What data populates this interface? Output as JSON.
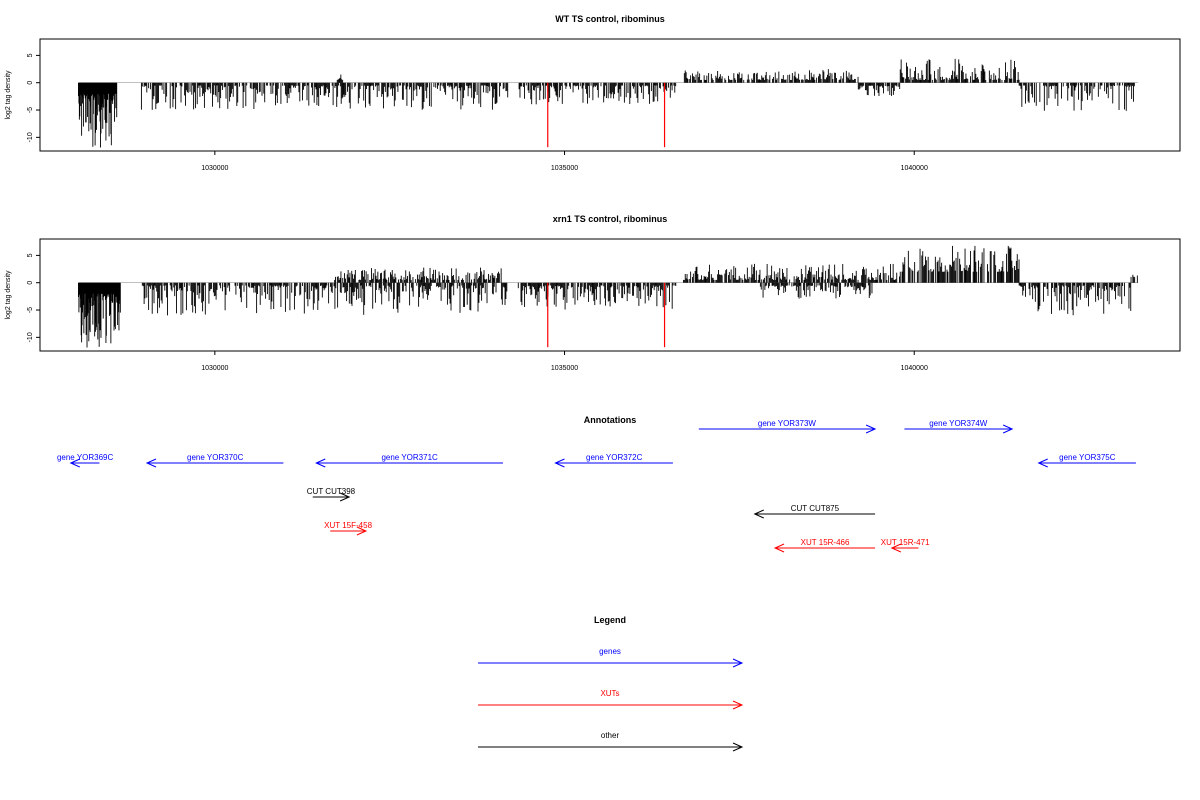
{
  "chart_data": [
    {
      "type": "bar",
      "title": "WT TS control, ribominus",
      "ylabel": "log2 tag density",
      "ylim": [
        -12.5,
        8
      ],
      "xlim": [
        1027500,
        1043800
      ],
      "yticks": [
        "5",
        "0",
        "-5",
        "-10"
      ],
      "xticks": [
        "1030000",
        "1035000",
        "1040000"
      ],
      "grid": false,
      "highlight_color": "#ff0000",
      "bar_color": "#000000",
      "segments": [
        {
          "from": 1028050,
          "to": 1028600,
          "sign": -1,
          "min": 2,
          "max": 12
        },
        {
          "from": 1028950,
          "to": 1034200,
          "sign": -1,
          "min": 0.5,
          "max": 5
        },
        {
          "from": 1031750,
          "to": 1031850,
          "sign": 1,
          "min": 0.5,
          "max": 1.5
        },
        {
          "from": 1034350,
          "to": 1036600,
          "sign": -1,
          "min": 0.5,
          "max": 4
        },
        {
          "from": 1036700,
          "to": 1039200,
          "sign": 1,
          "min": 0.5,
          "max": 2.5
        },
        {
          "from": 1039200,
          "to": 1039800,
          "sign": -1,
          "min": 0.5,
          "max": 2.5
        },
        {
          "from": 1039800,
          "to": 1041500,
          "sign": 1,
          "min": 0.5,
          "max": 4.5
        },
        {
          "from": 1041500,
          "to": 1043150,
          "sign": -1,
          "min": 0.5,
          "max": 5.5
        }
      ],
      "highlights": [
        {
          "x": 1034760,
          "value": -11.8
        },
        {
          "x": 1036430,
          "value": -11.8
        }
      ]
    },
    {
      "type": "bar",
      "title": "xrn1 TS control, ribominus",
      "ylabel": "log2 tag density",
      "ylim": [
        -12.5,
        8
      ],
      "xlim": [
        1027500,
        1043800
      ],
      "yticks": [
        "5",
        "0",
        "-5",
        "-10"
      ],
      "xticks": [
        "1030000",
        "1035000",
        "1040000"
      ],
      "grid": false,
      "highlight_color": "#ff0000",
      "bar_color": "#000000",
      "segments": [
        {
          "from": 1028050,
          "to": 1028650,
          "sign": -1,
          "min": 2,
          "max": 12
        },
        {
          "from": 1028950,
          "to": 1034200,
          "sign": -1,
          "min": 0.5,
          "max": 6
        },
        {
          "from": 1031700,
          "to": 1034100,
          "sign": 1,
          "min": 0.5,
          "max": 3
        },
        {
          "from": 1034300,
          "to": 1036600,
          "sign": -1,
          "min": 0.5,
          "max": 5
        },
        {
          "from": 1036700,
          "to": 1039800,
          "sign": 1,
          "min": 0.5,
          "max": 3.5
        },
        {
          "from": 1037800,
          "to": 1039400,
          "sign": -1,
          "min": 0.5,
          "max": 3
        },
        {
          "from": 1039800,
          "to": 1041500,
          "sign": 1,
          "min": 2,
          "max": 7
        },
        {
          "from": 1041500,
          "to": 1043100,
          "sign": -1,
          "min": 0.5,
          "max": 6
        },
        {
          "from": 1043100,
          "to": 1043200,
          "sign": 1,
          "min": 1,
          "max": 2.5
        }
      ],
      "highlights": [
        {
          "x": 1034760,
          "value": -11.8
        },
        {
          "x": 1036430,
          "value": -11.8
        }
      ]
    }
  ],
  "annotations": {
    "title": "Annotations",
    "items": [
      {
        "label": "gene YOR369C",
        "kind": "gene",
        "from": 1028350,
        "to": 1027940,
        "row": 0
      },
      {
        "label": "gene YOR370C",
        "kind": "gene",
        "from": 1030980,
        "to": 1029030,
        "row": 0
      },
      {
        "label": "gene YOR371C",
        "kind": "gene",
        "from": 1034120,
        "to": 1031450,
        "row": 0
      },
      {
        "label": "gene YOR372C",
        "kind": "gene",
        "from": 1036550,
        "to": 1034870,
        "row": 0
      },
      {
        "label": "gene YOR373W",
        "kind": "gene",
        "from": 1036920,
        "to": 1039440,
        "row": -1
      },
      {
        "label": "gene YOR374W",
        "kind": "gene",
        "from": 1039860,
        "to": 1041400,
        "row": -1
      },
      {
        "label": "gene YOR375C",
        "kind": "gene",
        "from": 1043170,
        "to": 1041780,
        "row": 0
      },
      {
        "label": "CUT CUT398",
        "kind": "other",
        "from": 1031400,
        "to": 1031920,
        "row": 1
      },
      {
        "label": "XUT 15F-458",
        "kind": "xut",
        "from": 1031650,
        "to": 1032160,
        "row": 2
      },
      {
        "label": "CUT CUT875",
        "kind": "other",
        "from": 1039440,
        "to": 1037720,
        "row": 1.5
      },
      {
        "label": "XUT 15R-466",
        "kind": "xut",
        "from": 1039440,
        "to": 1038010,
        "row": 2.5
      },
      {
        "label": "XUT 15R-471",
        "kind": "xut",
        "from": 1040060,
        "to": 1039680,
        "row": 2.5
      }
    ]
  },
  "legend": {
    "title": "Legend",
    "items": [
      {
        "label": "genes",
        "color": "#0000ff"
      },
      {
        "label": "XUTs",
        "color": "#ff0000"
      },
      {
        "label": "other",
        "color": "#000000"
      }
    ]
  }
}
